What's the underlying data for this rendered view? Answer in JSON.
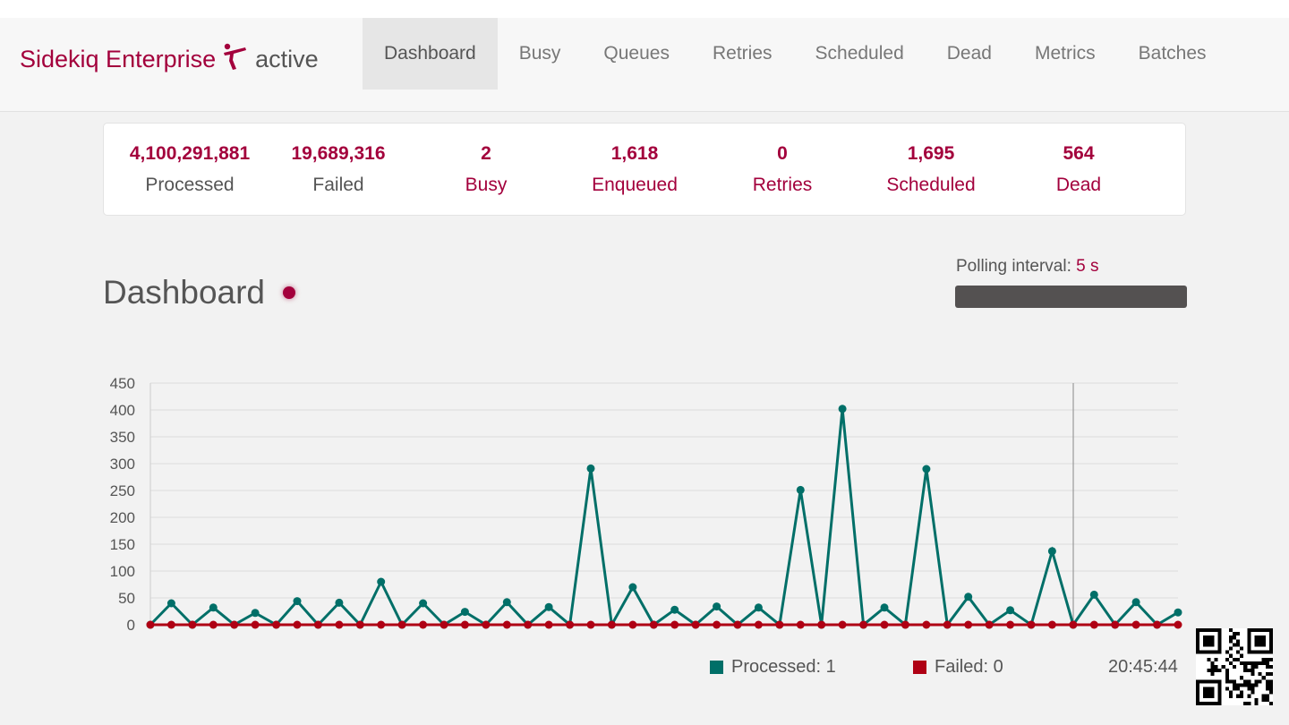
{
  "navbar": {
    "brand": "Sidekiq Enterprise",
    "environment": "active",
    "logo_icon": "sidekiq-kicker-icon",
    "tabs": [
      "Dashboard",
      "Busy",
      "Queues",
      "Retries",
      "Scheduled",
      "Dead",
      "Metrics",
      "Batches"
    ],
    "active_tab": "Dashboard"
  },
  "summary": [
    {
      "count": "4,100,291,881",
      "label": "Processed",
      "link": false
    },
    {
      "count": "19,689,316",
      "label": "Failed",
      "link": false
    },
    {
      "count": "2",
      "label": "Busy",
      "link": true
    },
    {
      "count": "1,618",
      "label": "Enqueued",
      "link": true
    },
    {
      "count": "0",
      "label": "Retries",
      "link": true
    },
    {
      "count": "1,695",
      "label": "Scheduled",
      "link": true
    },
    {
      "count": "564",
      "label": "Dead",
      "link": true
    }
  ],
  "dashboard": {
    "title": "Dashboard",
    "polling_label": "Polling interval:",
    "polling_value": "5 s"
  },
  "chart_data": {
    "type": "line",
    "y_ticks": [
      "450",
      "400",
      "350",
      "300",
      "250",
      "200",
      "150",
      "100",
      "50",
      "0"
    ],
    "ylim": [
      0,
      450
    ],
    "grid": true,
    "series": [
      {
        "name": "Processed",
        "color": "#006f68",
        "values": [
          0,
          40,
          0,
          32,
          0,
          22,
          0,
          44,
          0,
          41,
          0,
          80,
          0,
          40,
          0,
          24,
          0,
          42,
          0,
          33,
          0,
          291,
          0,
          70,
          0,
          28,
          0,
          34,
          0,
          32,
          0,
          251,
          0,
          402,
          0,
          32,
          0,
          290,
          0,
          52,
          0,
          27,
          0,
          137,
          0,
          56,
          0,
          42,
          0,
          23
        ]
      },
      {
        "name": "Failed",
        "color": "#af0014",
        "values": [
          0,
          0,
          0,
          0,
          0,
          0,
          0,
          0,
          0,
          0,
          0,
          0,
          0,
          0,
          0,
          0,
          0,
          0,
          0,
          0,
          0,
          0,
          0,
          0,
          0,
          0,
          0,
          0,
          0,
          0,
          0,
          0,
          0,
          0,
          0,
          0,
          0,
          0,
          0,
          0,
          0,
          0,
          0,
          0,
          0,
          0,
          0,
          0,
          0,
          0
        ]
      }
    ],
    "legend": [
      {
        "label": "Processed: 1",
        "color": "#006f68"
      },
      {
        "label": "Failed: 0",
        "color": "#af0014"
      }
    ],
    "timestamp": "20:45:44",
    "legend_position": "bottom"
  }
}
